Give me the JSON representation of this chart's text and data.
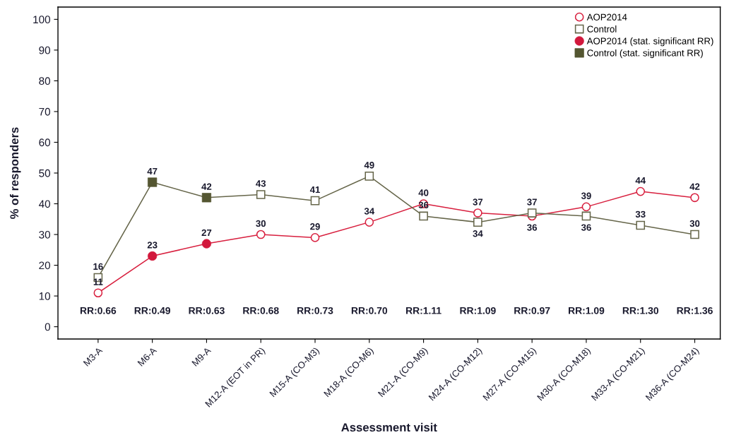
{
  "chart_data": {
    "type": "line",
    "xlabel": "Assessment visit",
    "ylabel": "% of responders",
    "categories": [
      "M3-A",
      "M6-A",
      "M9-A",
      "M12-A (EOT in PR)",
      "M15-A (CO-M3)",
      "M18-A (CO-M6)",
      "M21-A (CO-M9)",
      "M24-A (CO-M12)",
      "M27-A (CO-M15)",
      "M30-A (CO-M18)",
      "M33-A (CO-M21)",
      "M36-A (CO-M24)"
    ],
    "series": [
      {
        "name": "AOP2014",
        "marker": "circle",
        "color": "#d8203f",
        "values": [
          11,
          23,
          27,
          30,
          29,
          34,
          40,
          37,
          36,
          39,
          44,
          42
        ],
        "value_labels": [
          "11",
          "23",
          "27",
          "30",
          "29",
          "34",
          "40",
          "37",
          "36",
          "39",
          "44",
          "42"
        ]
      },
      {
        "name": "Control",
        "marker": "square",
        "color": "#66664a",
        "values": [
          16,
          47,
          42,
          43,
          41,
          49,
          36,
          34,
          37,
          36,
          33,
          30
        ],
        "value_labels": [
          "16",
          "47",
          "42",
          "43",
          "41",
          "49",
          "36",
          "34",
          "37",
          "36",
          "33",
          "30"
        ]
      },
      {
        "name": "AOP2014 (stat. significant RR)",
        "type": "scatter",
        "marker": "circle",
        "color": "#d2183c",
        "values": [
          null,
          23,
          27,
          null,
          null,
          null,
          null,
          null,
          null,
          null,
          null,
          null
        ]
      },
      {
        "name": "Control (stat. significant RR)",
        "type": "scatter",
        "marker": "square",
        "color": "#545631",
        "values": [
          null,
          47,
          42,
          null,
          null,
          null,
          null,
          null,
          null,
          null,
          null,
          null
        ]
      }
    ],
    "ylim": [
      -4,
      104
    ],
    "yticks": [
      0,
      10,
      20,
      30,
      40,
      50,
      60,
      70,
      80,
      90,
      100
    ],
    "grid": false,
    "legend": "top right",
    "line_style": "solid",
    "annotations": [
      "RR:0.66",
      "RR:0.49",
      "RR:0.63",
      "RR:0.68",
      "RR:0.73",
      "RR:0.70",
      "RR:1.11",
      "RR:1.09",
      "RR:0.97",
      "RR:1.09",
      "RR:1.30",
      "RR:1.36"
    ]
  }
}
